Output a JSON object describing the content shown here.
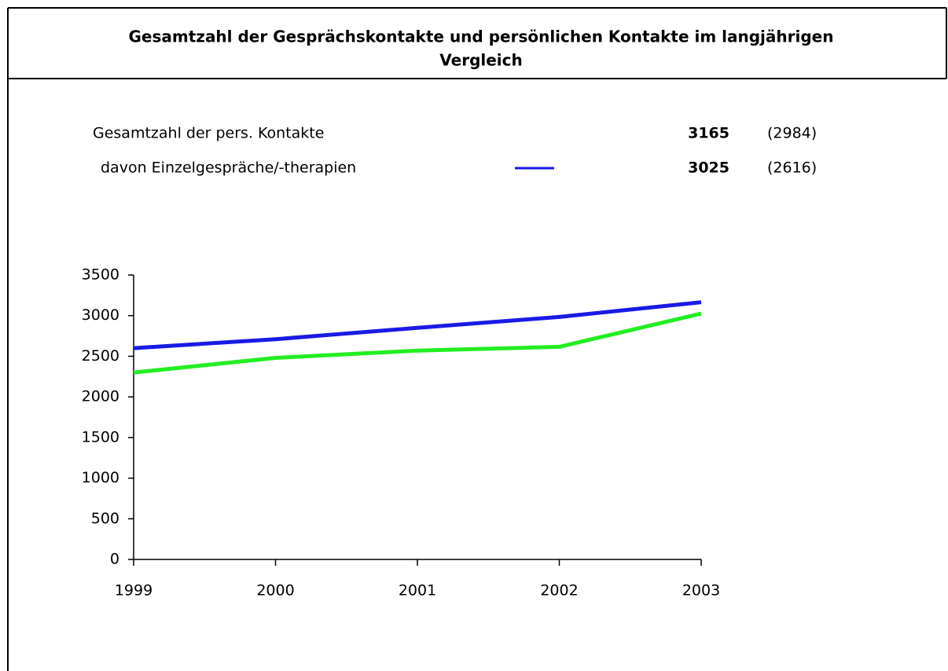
{
  "chart_data": {
    "type": "line",
    "title": "Gesamtzahl der Gesprächskontakte und persönlichen Kontakte im langjährigen",
    "subtitle": "Vergleich",
    "categories": [
      "1999",
      "2000",
      "2001",
      "2002",
      "2003"
    ],
    "series": [
      {
        "name": "Gesamtzahl der pers. Kontakte",
        "color": "#1a1ae6",
        "values": [
          2600,
          2710,
          2850,
          2984,
          3165
        ],
        "total": 3165,
        "previous": "(2984)"
      },
      {
        "name": "davon Einzelgespräche/-therapien",
        "color": "#22ee22",
        "values": [
          2300,
          2480,
          2570,
          2616,
          3025
        ],
        "total": 3025,
        "previous": "(2616)",
        "legend_marker_color": "#1a1ae6"
      }
    ],
    "ylim": [
      0,
      3500
    ],
    "yticks": [
      0,
      500,
      1000,
      1500,
      2000,
      2500,
      3000,
      3500
    ],
    "grid": false
  }
}
